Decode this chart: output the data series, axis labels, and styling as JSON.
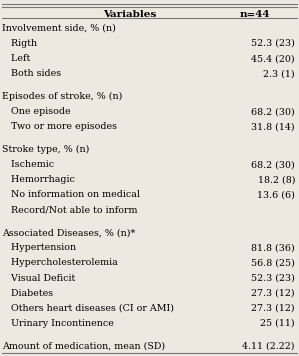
{
  "col1_header": "Variables",
  "col2_header": "n=44",
  "rows": [
    {
      "label": "Involvement side, % (n)",
      "value": "",
      "indent": 0
    },
    {
      "label": "   Rigth",
      "value": "52.3 (23)",
      "indent": 1
    },
    {
      "label": "   Left",
      "value": "45.4 (20)",
      "indent": 1
    },
    {
      "label": "   Both sides",
      "value": "2.3 (1)",
      "indent": 1
    },
    {
      "label": "",
      "value": "",
      "indent": 0
    },
    {
      "label": "Episodes of stroke, % (n)",
      "value": "",
      "indent": 0
    },
    {
      "label": "   One episode",
      "value": "68.2 (30)",
      "indent": 1
    },
    {
      "label": "   Two or more episodes",
      "value": "31.8 (14)",
      "indent": 1
    },
    {
      "label": "",
      "value": "",
      "indent": 0
    },
    {
      "label": "Stroke type, % (n)",
      "value": "",
      "indent": 0
    },
    {
      "label": "   Ischemic",
      "value": "68.2 (30)",
      "indent": 1
    },
    {
      "label": "   Hemorrhagic",
      "value": "18.2 (8)",
      "indent": 1
    },
    {
      "label": "   No information on medical",
      "value": "13.6 (6)",
      "indent": 1
    },
    {
      "label": "   Record/Not able to inform",
      "value": "",
      "indent": 1
    },
    {
      "label": "",
      "value": "",
      "indent": 0
    },
    {
      "label": "Associated Diseases, % (n)*",
      "value": "",
      "indent": 0
    },
    {
      "label": "   Hypertension",
      "value": "81.8 (36)",
      "indent": 1
    },
    {
      "label": "   Hypercholesterolemia",
      "value": "56.8 (25)",
      "indent": 1
    },
    {
      "label": "   Visual Deficit",
      "value": "52.3 (23)",
      "indent": 1
    },
    {
      "label": "   Diabetes",
      "value": "27.3 (12)",
      "indent": 1
    },
    {
      "label": "   Others heart diseases (CI or AMI)",
      "value": "27.3 (12)",
      "indent": 1
    },
    {
      "label": "   Urinary Incontinence",
      "value": "25 (11)",
      "indent": 1
    },
    {
      "label": "",
      "value": "",
      "indent": 0
    },
    {
      "label": "Amount of medication, mean (SD)",
      "value": "4.11 (2.22)",
      "indent": 0
    }
  ],
  "bg_color": "#ede8e0",
  "font_size": 6.8,
  "header_font_size": 7.5,
  "line_color": "#777777"
}
